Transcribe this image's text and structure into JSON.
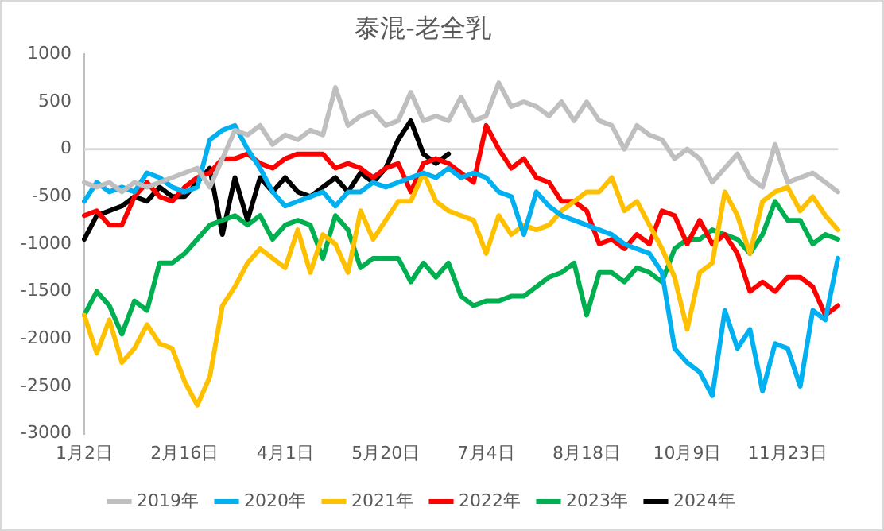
{
  "chart_data": {
    "type": "line",
    "title": "泰混-老全乳",
    "categories": [
      "1月2日",
      null,
      null,
      null,
      null,
      null,
      null,
      null,
      "2月16日",
      null,
      null,
      null,
      null,
      null,
      null,
      null,
      "4月1日",
      null,
      null,
      null,
      null,
      null,
      null,
      null,
      "5月20日",
      null,
      null,
      null,
      null,
      null,
      null,
      null,
      "7月4日",
      null,
      null,
      null,
      null,
      null,
      null,
      null,
      "8月18日",
      null,
      null,
      null,
      null,
      null,
      null,
      null,
      "10月9日",
      null,
      null,
      null,
      null,
      null,
      null,
      null,
      "11月23日",
      null,
      null,
      null,
      null
    ],
    "ylim": [
      -3000,
      1000
    ],
    "yticks": [
      -3000,
      -2500,
      -2000,
      -1500,
      -1000,
      -500,
      0,
      500,
      1000
    ],
    "grid": false,
    "legend": "bottom",
    "marker": "none",
    "line_style": "solid",
    "ref_lines": [
      {
        "axis": "y",
        "value": 0,
        "color": "#d9d9d9"
      }
    ],
    "series": [
      {
        "name": "2019年",
        "color": "#bfbfbf",
        "values": [
          -350,
          -400,
          -350,
          -450,
          -350,
          -400,
          -350,
          -300,
          -250,
          -200,
          -400,
          -100,
          200,
          150,
          250,
          50,
          150,
          100,
          200,
          150,
          650,
          250,
          350,
          400,
          250,
          300,
          600,
          300,
          350,
          300,
          550,
          300,
          350,
          700,
          450,
          500,
          450,
          350,
          500,
          300,
          500,
          300,
          250,
          0,
          250,
          150,
          100,
          -100,
          0,
          -100,
          -350,
          -200,
          -50,
          -300,
          -400,
          50,
          -350,
          -300,
          -250,
          -350,
          -450
        ]
      },
      {
        "name": "2020年",
        "color": "#00b0f0",
        "values": [
          -550,
          -350,
          -450,
          -400,
          -450,
          -250,
          -300,
          -400,
          -450,
          -400,
          100,
          200,
          250,
          0,
          -200,
          -450,
          -600,
          -550,
          -500,
          -450,
          -600,
          -450,
          -450,
          -350,
          -400,
          -350,
          -300,
          -250,
          -300,
          -200,
          -300,
          -250,
          -300,
          -450,
          -500,
          -900,
          -450,
          -600,
          -700,
          -750,
          -800,
          -850,
          -900,
          -1000,
          -1050,
          -1100,
          -1300,
          -2100,
          -2250,
          -2350,
          -2600,
          -1700,
          -2100,
          -1900,
          -2550,
          -2050,
          -2100,
          -2500,
          -1700,
          -1800,
          -1150
        ]
      },
      {
        "name": "2021年",
        "color": "#ffc000",
        "values": [
          -1750,
          -2150,
          -1800,
          -2250,
          -2100,
          -1850,
          -2050,
          -2100,
          -2450,
          -2700,
          -2400,
          -1650,
          -1450,
          -1200,
          -1050,
          -1150,
          -1250,
          -850,
          -1300,
          -900,
          -1000,
          -1300,
          -650,
          -950,
          -750,
          -550,
          -550,
          -250,
          -550,
          -650,
          -700,
          -750,
          -1100,
          -700,
          -900,
          -800,
          -850,
          -800,
          -650,
          -550,
          -450,
          -450,
          -300,
          -650,
          -550,
          -800,
          -1050,
          -1350,
          -1900,
          -1300,
          -1200,
          -450,
          -700,
          -1100,
          -550,
          -450,
          -400,
          -650,
          -500,
          -700,
          -850
        ]
      },
      {
        "name": "2022年",
        "color": "#ff0000",
        "values": [
          -700,
          -650,
          -800,
          -800,
          -500,
          -350,
          -500,
          -550,
          -400,
          -300,
          -250,
          -100,
          -100,
          -50,
          -150,
          -200,
          -100,
          -50,
          -50,
          -50,
          -200,
          -150,
          -200,
          -300,
          -200,
          -150,
          -450,
          -150,
          -100,
          -150,
          -250,
          -350,
          250,
          0,
          -200,
          -100,
          -300,
          -350,
          -550,
          -550,
          -650,
          -1000,
          -950,
          -1050,
          -900,
          -1000,
          -650,
          -700,
          -1000,
          -750,
          -1000,
          -900,
          -1100,
          -1500,
          -1400,
          -1500,
          -1350,
          -1350,
          -1450,
          -1750,
          -1650
        ]
      },
      {
        "name": "2023年",
        "color": "#00b050",
        "values": [
          -1750,
          -1500,
          -1650,
          -1950,
          -1600,
          -1700,
          -1200,
          -1200,
          -1100,
          -950,
          -800,
          -750,
          -700,
          -800,
          -700,
          -950,
          -800,
          -750,
          -800,
          -1150,
          -700,
          -850,
          -1250,
          -1150,
          -1150,
          -1150,
          -1400,
          -1200,
          -1350,
          -1200,
          -1550,
          -1650,
          -1600,
          -1600,
          -1550,
          -1550,
          -1450,
          -1350,
          -1300,
          -1200,
          -1750,
          -1300,
          -1300,
          -1400,
          -1250,
          -1300,
          -1400,
          -1050,
          -950,
          -950,
          -850,
          -900,
          -950,
          -1100,
          -900,
          -550,
          -750,
          -750,
          -1000,
          -900,
          -950
        ]
      },
      {
        "name": "2024年",
        "color": "#000000",
        "values": [
          -950,
          -700,
          -650,
          -600,
          -500,
          -550,
          -400,
          -500,
          -500,
          -350,
          -200,
          -900,
          -300,
          -750,
          -300,
          -450,
          -300,
          -450,
          -500,
          -400,
          -300,
          -450,
          -250,
          -350,
          -200,
          100,
          300,
          -50,
          -150,
          -50,
          null,
          null,
          null,
          null,
          null,
          null,
          null,
          null,
          null,
          null,
          null,
          null,
          null,
          null,
          null,
          null,
          null,
          null,
          null,
          null,
          null,
          null,
          null,
          null,
          null,
          null,
          null,
          null,
          null,
          null,
          null
        ]
      }
    ]
  }
}
